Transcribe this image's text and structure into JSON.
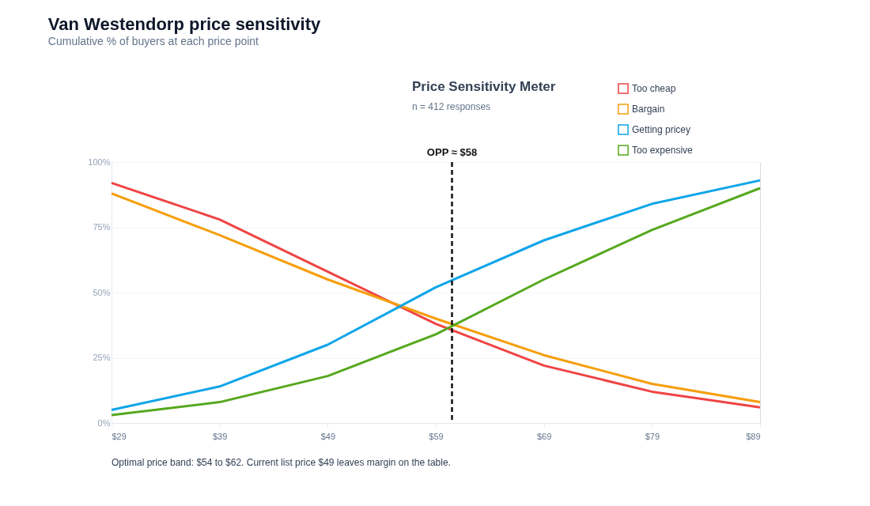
{
  "chart_data": {
    "type": "line",
    "title": "Van Westendorp price sensitivity",
    "subtitle": "Cumulative % of buyers at each price point",
    "x": [
      29,
      39,
      49,
      59,
      69,
      79,
      89
    ],
    "xlim": [
      29,
      89
    ],
    "xticks": [
      {
        "value": 29,
        "label": "$29"
      },
      {
        "value": 39,
        "label": "$39"
      },
      {
        "value": 49,
        "label": "$49"
      },
      {
        "value": 59,
        "label": "$59"
      },
      {
        "value": 69,
        "label": "$69"
      },
      {
        "value": 79,
        "label": "$79"
      },
      {
        "value": 89,
        "label": "$89"
      }
    ],
    "ylim": [
      0,
      100
    ],
    "yticks": [
      {
        "value": 0,
        "label": "0%"
      },
      {
        "value": 25,
        "label": "25%"
      },
      {
        "value": 50,
        "label": "50%"
      },
      {
        "value": 75,
        "label": "75%"
      },
      {
        "value": 100,
        "label": "100%"
      }
    ],
    "series": [
      {
        "name": "Too cheap",
        "color": "#ef4444",
        "values": [
          92,
          78,
          58,
          38,
          22,
          12,
          6
        ]
      },
      {
        "name": "Bargain",
        "color": "#f59e0b",
        "values": [
          88,
          72,
          55,
          40,
          26,
          15,
          8
        ]
      },
      {
        "name": "Getting pricey",
        "color": "#0ea5e9",
        "values": [
          5,
          14,
          30,
          52,
          70,
          84,
          93
        ]
      },
      {
        "name": "Too expensive",
        "color": "#56a81e",
        "values": [
          3,
          8,
          18,
          34,
          55,
          74,
          90
        ]
      }
    ],
    "ref_lines": [
      {
        "axis": "x",
        "value": 60.5,
        "label": "OPP ≈ $58",
        "color": "#111111",
        "line_style": "dashed"
      }
    ],
    "annotations": [
      "Price Sensitivity Meter",
      "n = 412 responses",
      "Optimal price band: $54 to $62. Current list price $49 leaves margin on the table."
    ],
    "grid": "y",
    "legend": "top right",
    "marker": "none",
    "line_style": "solid"
  }
}
